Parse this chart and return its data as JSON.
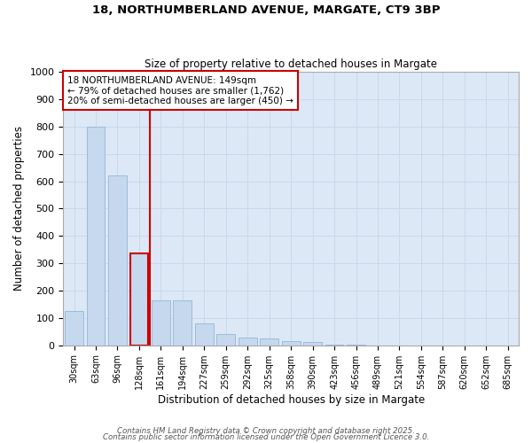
{
  "title1": "18, NORTHUMBERLAND AVENUE, MARGATE, CT9 3BP",
  "title2": "Size of property relative to detached houses in Margate",
  "xlabel": "Distribution of detached houses by size in Margate",
  "ylabel": "Number of detached properties",
  "categories": [
    "30sqm",
    "63sqm",
    "96sqm",
    "128sqm",
    "161sqm",
    "194sqm",
    "227sqm",
    "259sqm",
    "292sqm",
    "325sqm",
    "358sqm",
    "390sqm",
    "423sqm",
    "456sqm",
    "489sqm",
    "521sqm",
    "554sqm",
    "587sqm",
    "620sqm",
    "652sqm",
    "685sqm"
  ],
  "values": [
    125,
    800,
    620,
    335,
    165,
    165,
    80,
    40,
    28,
    25,
    15,
    12,
    3,
    1,
    0,
    0,
    0,
    0,
    0,
    0,
    0
  ],
  "bar_color": "#c5d8ee",
  "bar_edgecolor": "#9bbcdb",
  "highlight_bar_index": 3,
  "highlight_color": "#cc0000",
  "annotation_text": "18 NORTHUMBERLAND AVENUE: 149sqm\n← 79% of detached houses are smaller (1,762)\n20% of semi-detached houses are larger (450) →",
  "annotation_box_color": "#cc0000",
  "ylim": [
    0,
    1000
  ],
  "yticks": [
    0,
    100,
    200,
    300,
    400,
    500,
    600,
    700,
    800,
    900,
    1000
  ],
  "grid_color": "#c8d8ee",
  "background_color": "#dce8f5",
  "fig_background": "#ffffff",
  "footer1": "Contains HM Land Registry data © Crown copyright and database right 2025.",
  "footer2": "Contains public sector information licensed under the Open Government Licence 3.0."
}
